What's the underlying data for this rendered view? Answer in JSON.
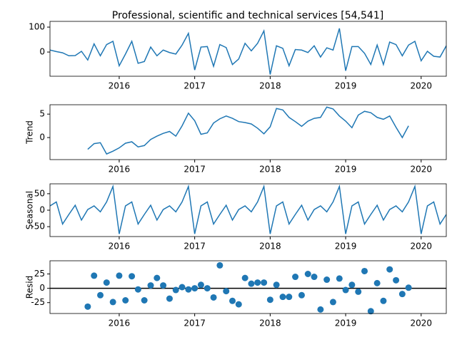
{
  "chart_data": {
    "type": "line",
    "title": "Professional, scientific and technical services  [54,541]",
    "x": [
      2015.083,
      2015.167,
      2015.25,
      2015.333,
      2015.417,
      2015.5,
      2015.583,
      2015.667,
      2015.75,
      2015.833,
      2015.917,
      2016.0,
      2016.083,
      2016.167,
      2016.25,
      2016.333,
      2016.417,
      2016.5,
      2016.583,
      2016.667,
      2016.75,
      2016.833,
      2016.917,
      2017.0,
      2017.083,
      2017.167,
      2017.25,
      2017.333,
      2017.417,
      2017.5,
      2017.583,
      2017.667,
      2017.75,
      2017.833,
      2017.917,
      2018.0,
      2018.083,
      2018.167,
      2018.25,
      2018.333,
      2018.417,
      2018.5,
      2018.583,
      2018.667,
      2018.75,
      2018.833,
      2018.917,
      2019.0,
      2019.083,
      2019.167,
      2019.25,
      2019.333,
      2019.417,
      2019.5,
      2019.583,
      2019.667,
      2019.75,
      2019.833,
      2019.917,
      2020.0,
      2020.083,
      2020.167,
      2020.25,
      2020.333
    ],
    "xlim": [
      2015.083,
      2020.333
    ],
    "xticks": [
      2016,
      2017,
      2018,
      2019,
      2020
    ],
    "panels": [
      {
        "type": "line",
        "color": "#1f77b4",
        "ylim": [
          -97,
          123
        ],
        "yticks": [
          0,
          100
        ],
        "values": [
          8,
          2,
          -3,
          -15,
          -14,
          3,
          -32,
          33,
          -15,
          30,
          43,
          -55,
          -8,
          43,
          -45,
          -38,
          20,
          -15,
          8,
          -2,
          -8,
          28,
          75,
          -72,
          20,
          22,
          -57,
          30,
          18,
          -50,
          -28,
          35,
          5,
          35,
          85,
          -90,
          25,
          15,
          -55,
          10,
          8,
          -2,
          25,
          -20,
          17,
          8,
          95,
          -75,
          22,
          22,
          -5,
          -50,
          28,
          -50,
          40,
          30,
          -15,
          28,
          43,
          -35,
          3,
          -17,
          -20,
          25
        ]
      },
      {
        "type": "line",
        "color": "#1f77b4",
        "ylabel": "Trend",
        "ylim": [
          -4.7,
          7.0
        ],
        "yticks": [
          0,
          5
        ],
        "values": [
          null,
          null,
          null,
          null,
          null,
          null,
          -2.5,
          -1.3,
          -1.1,
          -3.5,
          -2.9,
          -2.2,
          -1.2,
          -0.9,
          -2.0,
          -1.7,
          -0.4,
          0.3,
          0.9,
          1.3,
          0.3,
          2.5,
          5.2,
          3.6,
          0.7,
          1.0,
          3.1,
          4.0,
          4.6,
          4.1,
          3.4,
          3.2,
          2.9,
          2.0,
          0.8,
          2.3,
          6.2,
          5.9,
          4.3,
          3.4,
          2.4,
          3.5,
          4.1,
          4.3,
          6.5,
          6.1,
          4.6,
          3.5,
          2.1,
          4.8,
          5.6,
          5.3,
          4.3,
          3.9,
          4.6,
          2.2,
          0,
          2.5,
          null,
          null,
          null,
          null,
          null,
          null
        ]
      },
      {
        "type": "line",
        "color": "#1f77b4",
        "ylabel": "Seasonal",
        "ylim": [
          -80,
          80
        ],
        "yticks": [
          -50,
          0,
          50
        ],
        "values": [
          13,
          25,
          -42,
          -13,
          15,
          -30,
          2,
          13,
          -5,
          25,
          72,
          -72,
          13,
          25,
          -42,
          -13,
          15,
          -30,
          2,
          13,
          -5,
          25,
          72,
          -72,
          13,
          25,
          -42,
          -13,
          15,
          -30,
          2,
          13,
          -5,
          25,
          72,
          -72,
          13,
          25,
          -42,
          -13,
          15,
          -30,
          2,
          13,
          -5,
          25,
          72,
          -72,
          13,
          25,
          -42,
          -13,
          15,
          -30,
          2,
          13,
          -5,
          25,
          72,
          -72,
          13,
          25,
          -42,
          -13
        ]
      },
      {
        "type": "scatter",
        "color": "#1f77b4",
        "ylabel": "Resid",
        "ylim": [
          -44,
          48
        ],
        "yticks": [
          -25,
          0,
          25
        ],
        "values": [
          null,
          null,
          null,
          null,
          null,
          null,
          -32,
          22,
          -12,
          10,
          -24,
          22,
          -21,
          21,
          -2,
          -21,
          5,
          18,
          5,
          -18,
          -3,
          2,
          -2,
          0,
          6,
          0,
          -16,
          40,
          -5,
          -22,
          -28,
          18,
          8,
          10,
          10,
          -20,
          6,
          -15,
          -15,
          20,
          -12,
          25,
          20,
          -37,
          15,
          -24,
          17,
          -3,
          6,
          -6,
          30,
          -40,
          9,
          -22,
          33,
          14,
          -10,
          1,
          null,
          null,
          null,
          null,
          null,
          null
        ]
      }
    ]
  }
}
